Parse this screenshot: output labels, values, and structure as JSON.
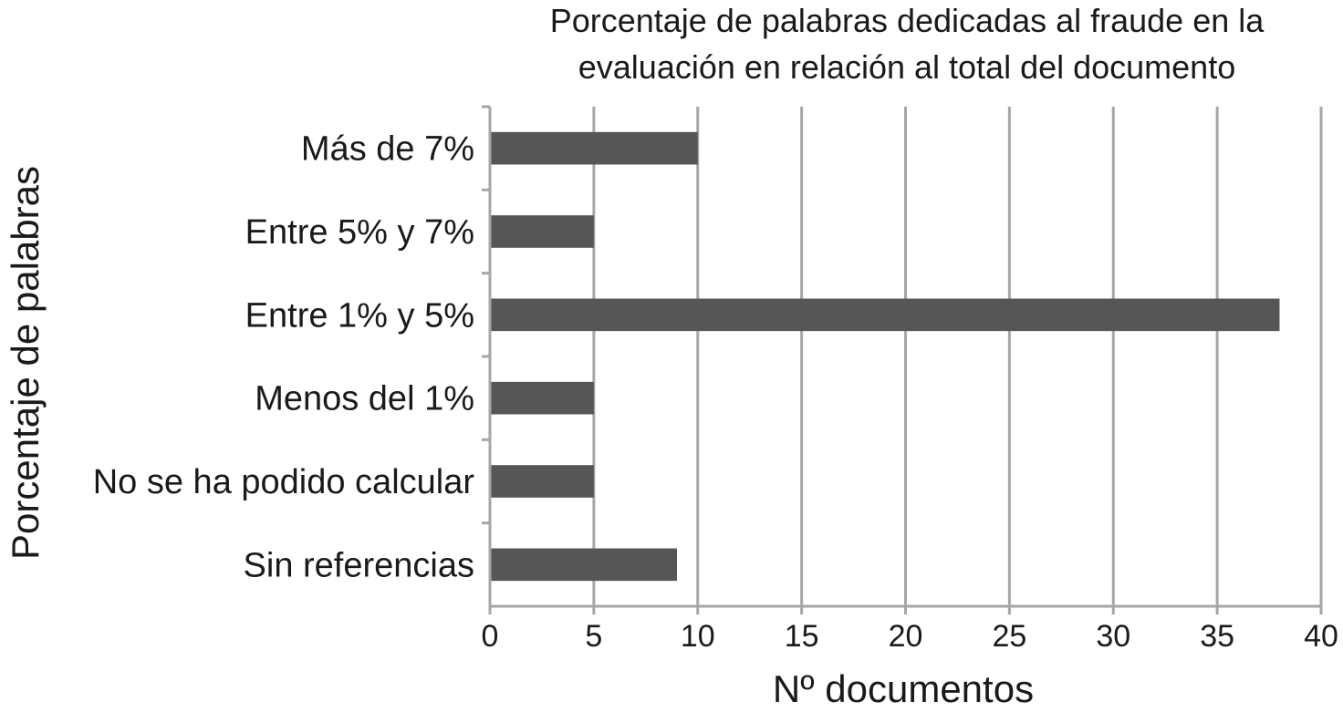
{
  "chart_data": {
    "type": "bar",
    "orientation": "horizontal",
    "title_lines": [
      "Porcentaje de palabras dedicadas al fraude en la",
      "evaluación en relación al total del documento"
    ],
    "categories": [
      "Más de 7%",
      "Entre 5% y 7%",
      "Entre 1% y 5%",
      "Menos del 1%",
      "No se ha podido calcular",
      "Sin referencias"
    ],
    "values": [
      10,
      5,
      38,
      5,
      5,
      9
    ],
    "xlabel": "Nº documentos",
    "ylabel": "Porcentaje de palabras",
    "xlim": [
      0,
      40
    ],
    "xticks": [
      "0",
      "5",
      "10",
      "15",
      "20",
      "25",
      "30",
      "35",
      "40"
    ],
    "grid": true,
    "legend": "none",
    "colors": {
      "bar": "#565656",
      "grid": "#a6a6a6",
      "text": "#1a1a1a"
    }
  }
}
